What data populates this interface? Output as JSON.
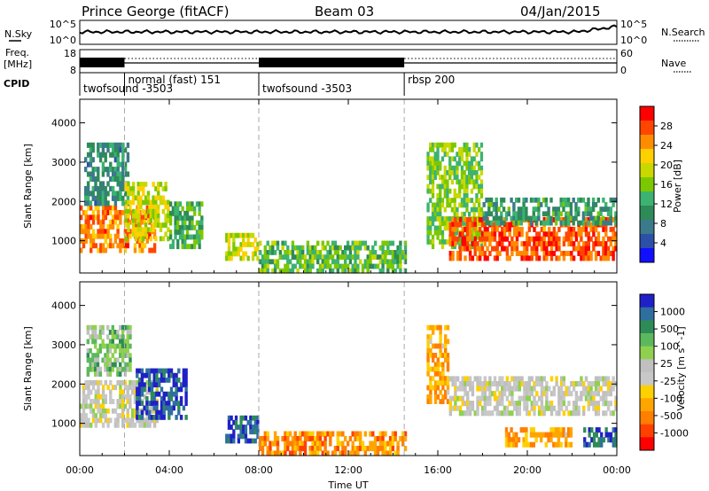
{
  "header": {
    "station": "Prince George (fitACF)",
    "beam": "Beam 03",
    "date": "04/Jan/2015"
  },
  "summary": {
    "nsky_label": "N.Sky",
    "nsearch_label": "N.Search",
    "freq_label": "Freq.",
    "freq_unit": "[MHz]",
    "nave_label": "Nave",
    "cpid_label": "CPID",
    "noise_ticks": [
      "10^5",
      "10^0"
    ],
    "freq_ticks": [
      "18",
      "8"
    ],
    "nave_ticks": [
      "60",
      "0"
    ],
    "programs": [
      {
        "name": "twofsound -3503",
        "start": 0.0,
        "end": 2.0,
        "solid": true
      },
      {
        "name": "normal (fast) 151",
        "start": 2.0,
        "end": 8.0,
        "solid": false
      },
      {
        "name": "twofsound -3503",
        "start": 8.0,
        "end": 14.5,
        "solid": true
      },
      {
        "name": "rbsp 200",
        "start": 14.5,
        "end": 24.0,
        "solid": false
      }
    ]
  },
  "chart_data": [
    {
      "type": "heatmap",
      "name": "power",
      "ylabel": "Slant Range [km]",
      "ylim": [
        180,
        4600
      ],
      "yticks": [
        1000,
        2000,
        3000,
        4000
      ],
      "colorbar_label": "Power [dB]",
      "colorbar_ticks": [
        "28",
        "24",
        "20",
        "16",
        "12",
        "8",
        "4"
      ],
      "colorbar_colors": [
        "#ff0000",
        "#ff4500",
        "#ff8c00",
        "#ffd000",
        "#c8d800",
        "#7cc800",
        "#3cb371",
        "#2e8b57",
        "#3a7a8a",
        "#2c50a8",
        "#1010ff"
      ],
      "regions": [
        {
          "t0": 0.0,
          "t1": 3.5,
          "r0": 700,
          "r1": 1900,
          "level": 0.8
        },
        {
          "t0": 0.2,
          "t1": 2.2,
          "r0": 1900,
          "r1": 3500,
          "level": 0.3
        },
        {
          "t0": 2.0,
          "t1": 4.0,
          "r0": 1000,
          "r1": 2500,
          "level": 0.6
        },
        {
          "t0": 4.0,
          "t1": 5.5,
          "r0": 800,
          "r1": 2000,
          "level": 0.4
        },
        {
          "t0": 6.5,
          "t1": 8.0,
          "r0": 500,
          "r1": 1200,
          "level": 0.6
        },
        {
          "t0": 8.0,
          "t1": 14.6,
          "r0": 180,
          "r1": 1000,
          "level": 0.45
        },
        {
          "t0": 15.5,
          "t1": 18.0,
          "r0": 800,
          "r1": 3500,
          "level": 0.5
        },
        {
          "t0": 16.5,
          "t1": 24.0,
          "r0": 500,
          "r1": 1600,
          "level": 0.85
        },
        {
          "t0": 18.0,
          "t1": 24.0,
          "r0": 1400,
          "r1": 2100,
          "level": 0.35
        }
      ]
    },
    {
      "type": "heatmap",
      "name": "velocity",
      "ylabel": "Slant Range [km]",
      "ylim": [
        180,
        4600
      ],
      "yticks": [
        1000,
        2000,
        3000,
        4000
      ],
      "colorbar_label": "Velocity [m s^-1]",
      "colorbar_ticks": [
        "1000",
        "500",
        "100",
        "25",
        "-25",
        "-100",
        "-500",
        "-1000"
      ],
      "colorbar_colors": [
        "#2020c8",
        "#2f6fa0",
        "#2e8b57",
        "#5cb85c",
        "#8fd14f",
        "#c0c0c0",
        "#c8c8c8",
        "#ffd000",
        "#ffa500",
        "#ff7f00",
        "#ff4000",
        "#ff0000"
      ],
      "regions": [
        {
          "t0": 0.0,
          "t1": 3.5,
          "r0": 900,
          "r1": 2100,
          "level": 0.5
        },
        {
          "t0": 0.3,
          "t1": 2.3,
          "r0": 2200,
          "r1": 3500,
          "level": 0.65
        },
        {
          "t0": 2.5,
          "t1": 4.8,
          "r0": 1100,
          "r1": 2400,
          "level": 0.92
        },
        {
          "t0": 6.5,
          "t1": 8.0,
          "r0": 500,
          "r1": 1200,
          "level": 0.9
        },
        {
          "t0": 8.0,
          "t1": 14.6,
          "r0": 180,
          "r1": 800,
          "level": 0.25
        },
        {
          "t0": 15.5,
          "t1": 16.5,
          "r0": 1500,
          "r1": 3500,
          "level": 0.3
        },
        {
          "t0": 16.5,
          "t1": 24.0,
          "r0": 1200,
          "r1": 2200,
          "level": 0.5
        },
        {
          "t0": 19.0,
          "t1": 22.0,
          "r0": 400,
          "r1": 900,
          "level": 0.3
        },
        {
          "t0": 22.5,
          "t1": 24.0,
          "r0": 400,
          "r1": 900,
          "level": 0.88
        }
      ]
    }
  ],
  "x_axis": {
    "label": "Time UT",
    "xlim": [
      0,
      24
    ],
    "ticks": [
      {
        "value": 0,
        "label": "00:00"
      },
      {
        "value": 4,
        "label": "04:00"
      },
      {
        "value": 8,
        "label": "08:00"
      },
      {
        "value": 12,
        "label": "12:00"
      },
      {
        "value": 16,
        "label": "16:00"
      },
      {
        "value": 20,
        "label": "20:00"
      },
      {
        "value": 24,
        "label": "00:00"
      }
    ],
    "dashed_lines": [
      2.0,
      8.0,
      14.5
    ]
  }
}
